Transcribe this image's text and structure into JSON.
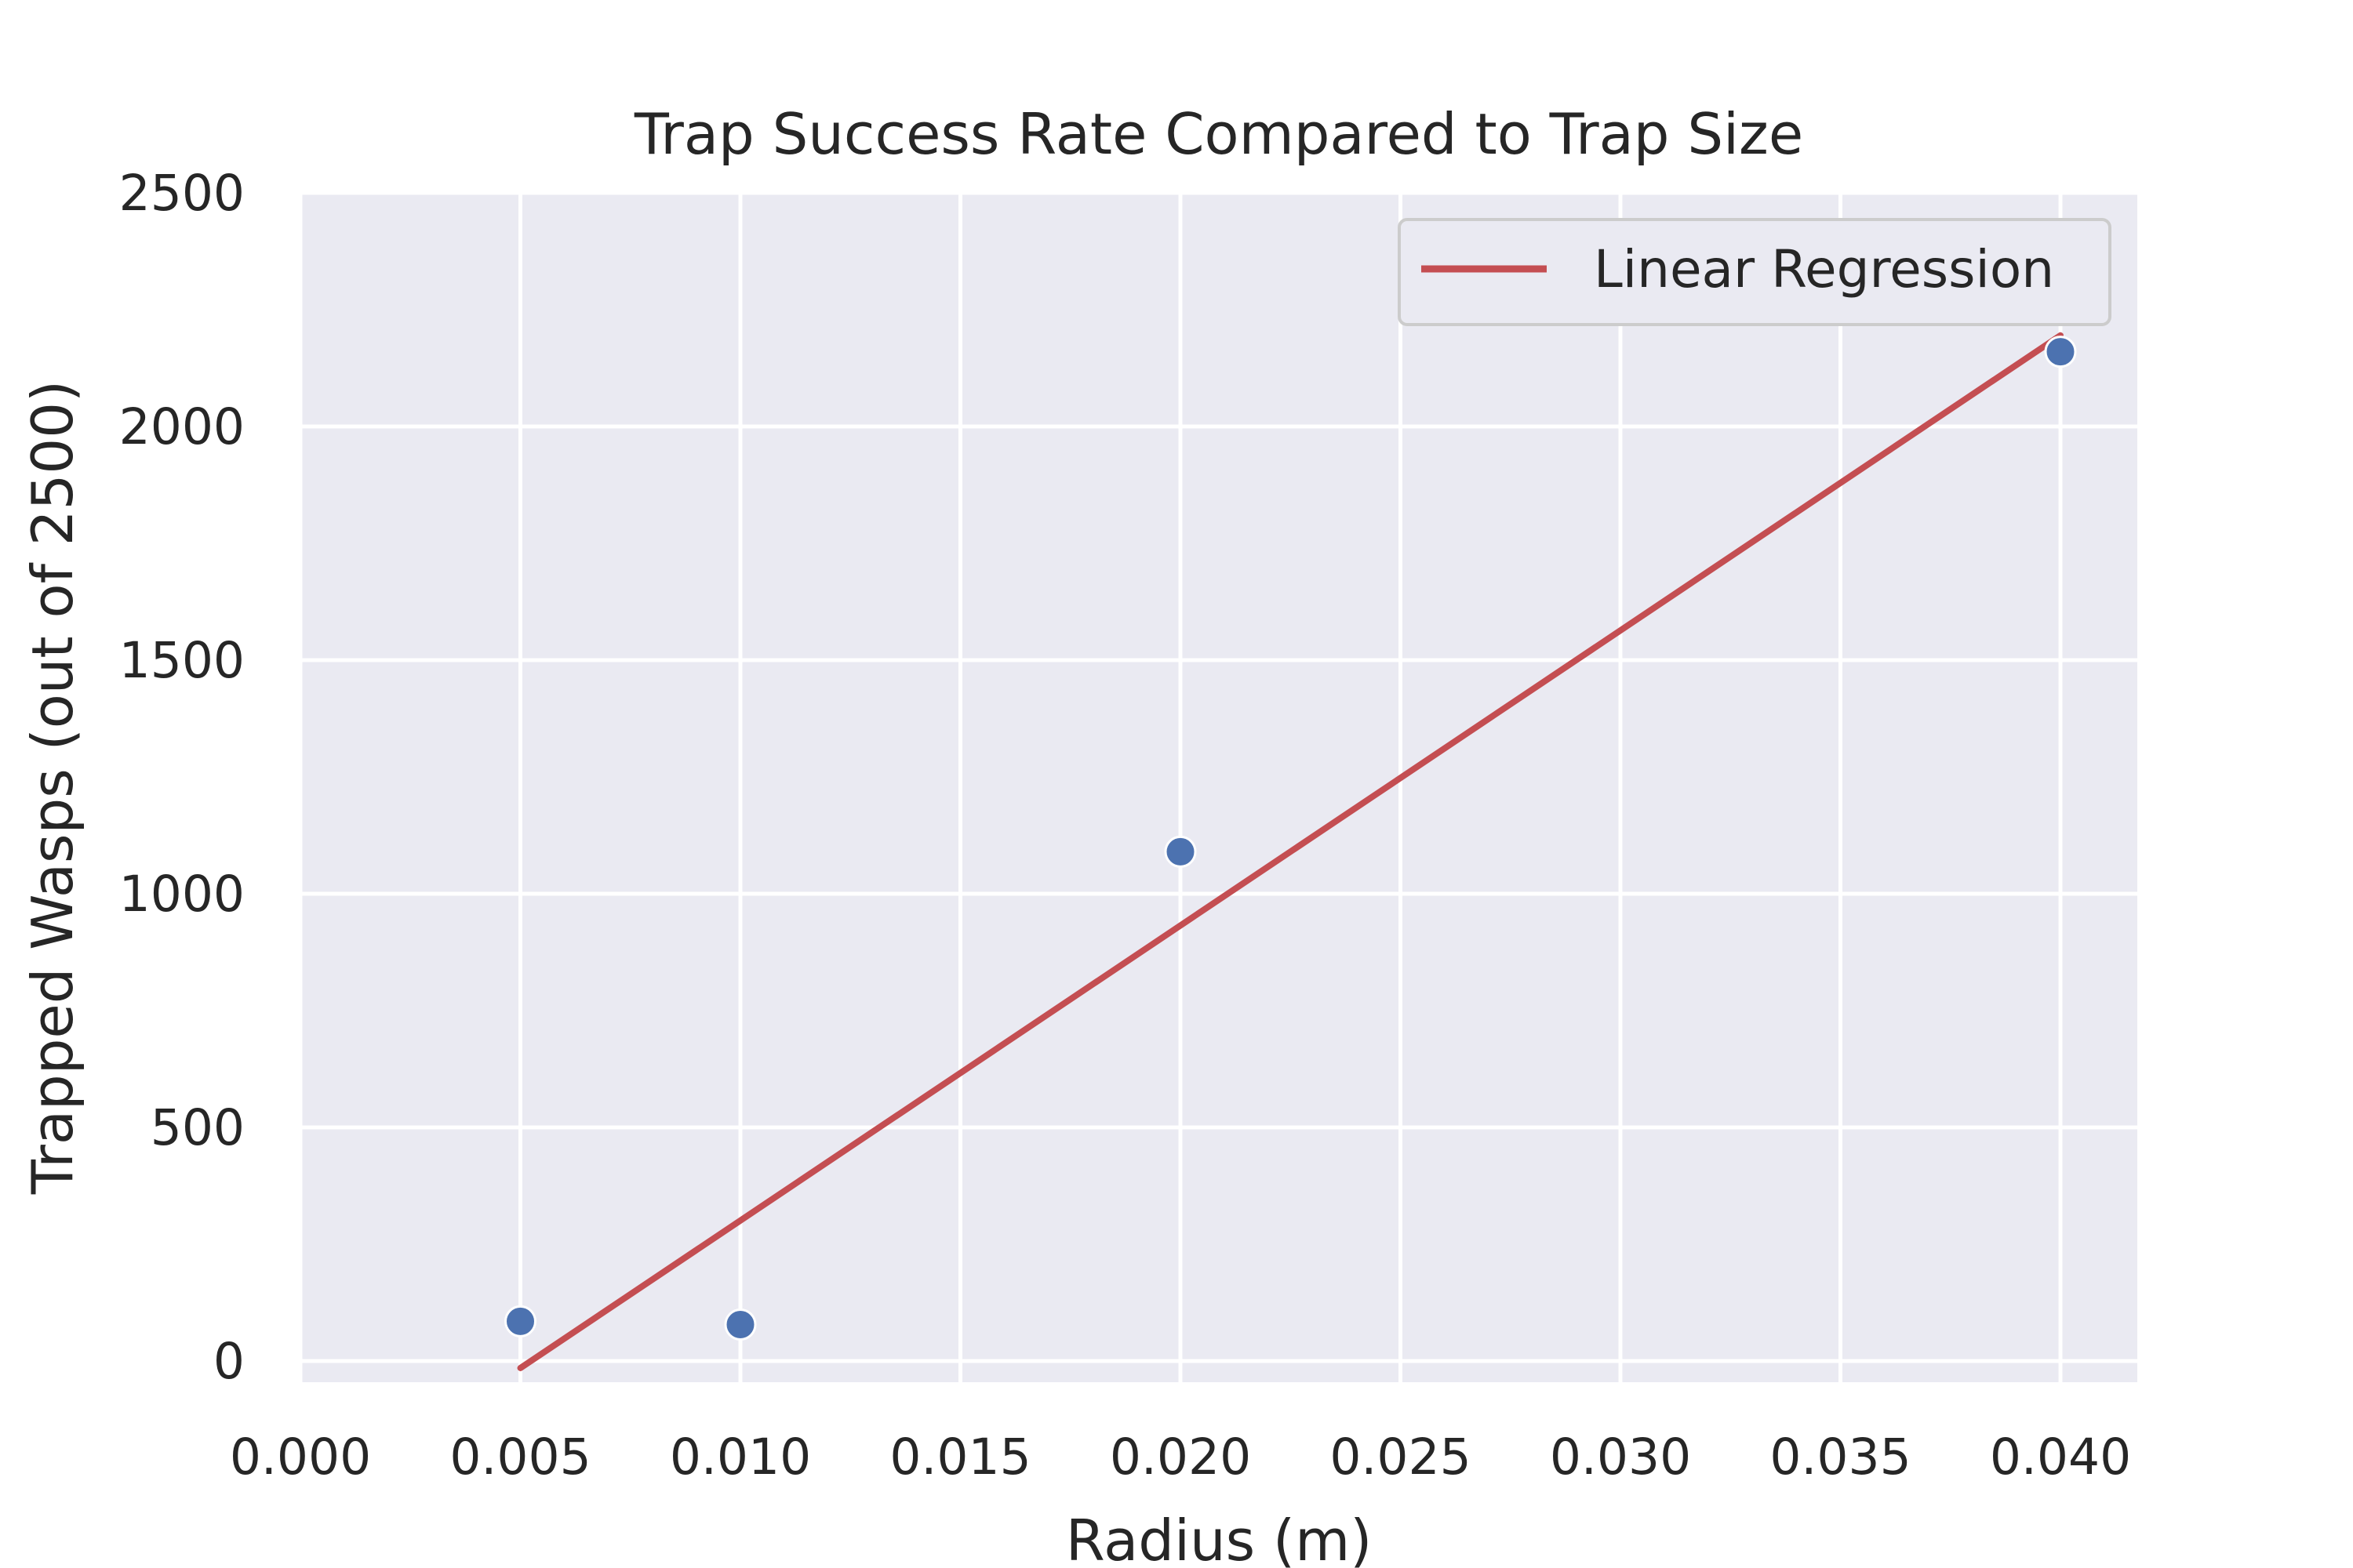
{
  "chart_data": {
    "type": "scatter",
    "title": "Trap Success Rate Compared to Trap Size",
    "xlabel": "Radius (m)",
    "ylabel": "Trapped Wasps (out of 2500)",
    "xlim": [
      0.0,
      0.042
    ],
    "ylim": [
      -40,
      2500
    ],
    "x_ticks": [
      "0.000",
      "0.005",
      "0.010",
      "0.015",
      "0.020",
      "0.025",
      "0.030",
      "0.035",
      "0.040"
    ],
    "y_ticks": [
      "0",
      "500",
      "1000",
      "1500",
      "2000",
      "2500"
    ],
    "grid": true,
    "legend_position": "top-right",
    "series": [
      {
        "type": "scatter",
        "color": "#4c72b0",
        "x": [
          0.005,
          0.01,
          0.02,
          0.04
        ],
        "y": [
          85,
          78,
          1090,
          2160
        ]
      },
      {
        "type": "line",
        "name": "Linear Regression",
        "color": "#c44e52",
        "x": [
          0.005,
          0.04
        ],
        "y": [
          -15,
          2195
        ]
      }
    ]
  }
}
